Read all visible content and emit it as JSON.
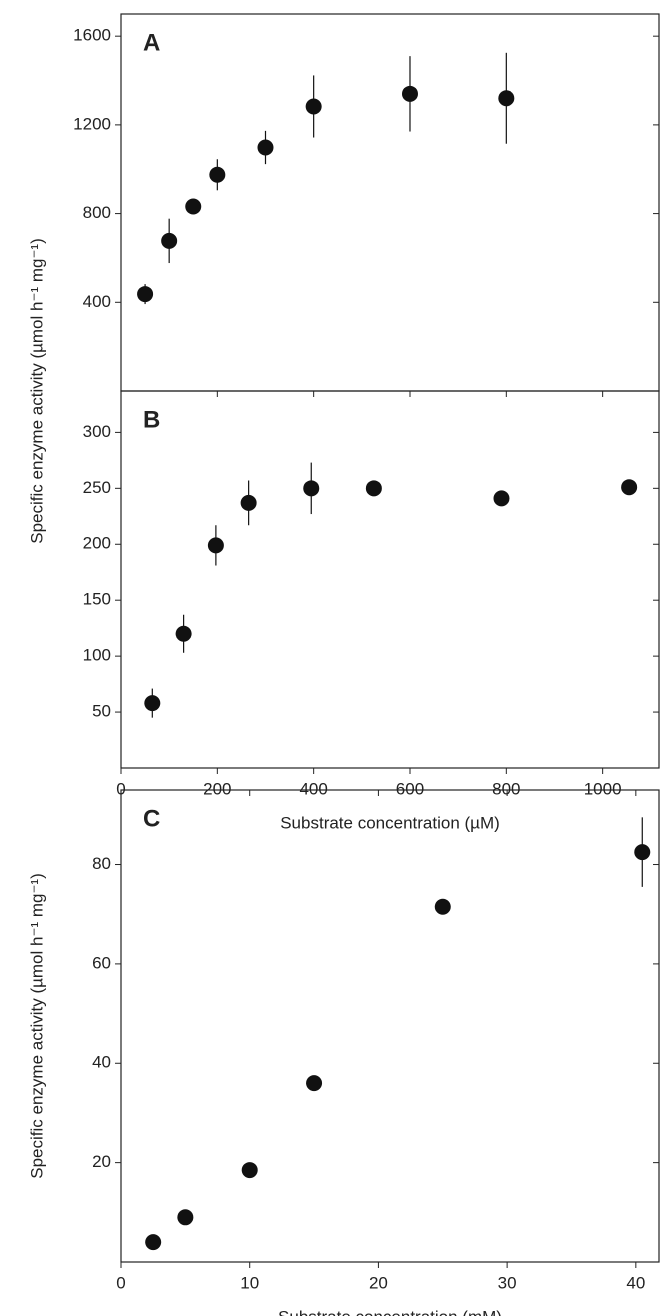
{
  "chart_data": [
    {
      "type": "scatter",
      "panel_label": "A",
      "color": "#111111",
      "x": [
        50,
        100,
        150,
        200,
        300,
        400,
        600,
        800
      ],
      "values": [
        437,
        677,
        832,
        975,
        1098,
        1283,
        1340,
        1320
      ],
      "errors": [
        45,
        100,
        20,
        70,
        75,
        140,
        170,
        205
      ],
      "xlim": [
        0,
        1117
      ],
      "ylim": [
        0,
        1700
      ],
      "yticks": [
        400,
        800,
        1200,
        1600
      ]
    },
    {
      "type": "scatter",
      "panel_label": "B",
      "color": "#111111",
      "x": [
        65,
        130,
        197,
        265,
        395,
        525,
        790,
        1055
      ],
      "values": [
        58,
        120,
        199,
        237,
        250,
        250,
        241,
        251
      ],
      "errors": [
        13,
        17,
        18,
        20,
        23,
        3,
        3,
        3
      ],
      "xlim": [
        0,
        1117
      ],
      "ylim": [
        0,
        337
      ],
      "yticks": [
        50,
        100,
        150,
        200,
        250,
        300
      ],
      "xticks": [
        0,
        200,
        400,
        600,
        800,
        1000
      ],
      "xlabel": "Substrate concentration (µM)",
      "ylabel": "Specific enzyme activity (µmol h⁻¹ mg⁻¹)"
    },
    {
      "type": "scatter",
      "panel_label": "C",
      "color": "#111111",
      "x": [
        2.5,
        5,
        10,
        15,
        25,
        40.5
      ],
      "values": [
        4,
        9,
        18.5,
        36,
        71.5,
        82.5
      ],
      "errors": [
        0.5,
        0.5,
        0.5,
        0.5,
        0.5,
        7
      ],
      "xlim": [
        0,
        41.8
      ],
      "ylim": [
        0,
        95
      ],
      "yticks": [
        20,
        40,
        60,
        80
      ],
      "xticks": [
        0,
        10,
        20,
        30,
        40
      ],
      "xlabel": "Substrate concentration (mM)",
      "ylabel": "Specific enzyme activity (µmol h⁻¹ mg⁻¹)"
    }
  ]
}
